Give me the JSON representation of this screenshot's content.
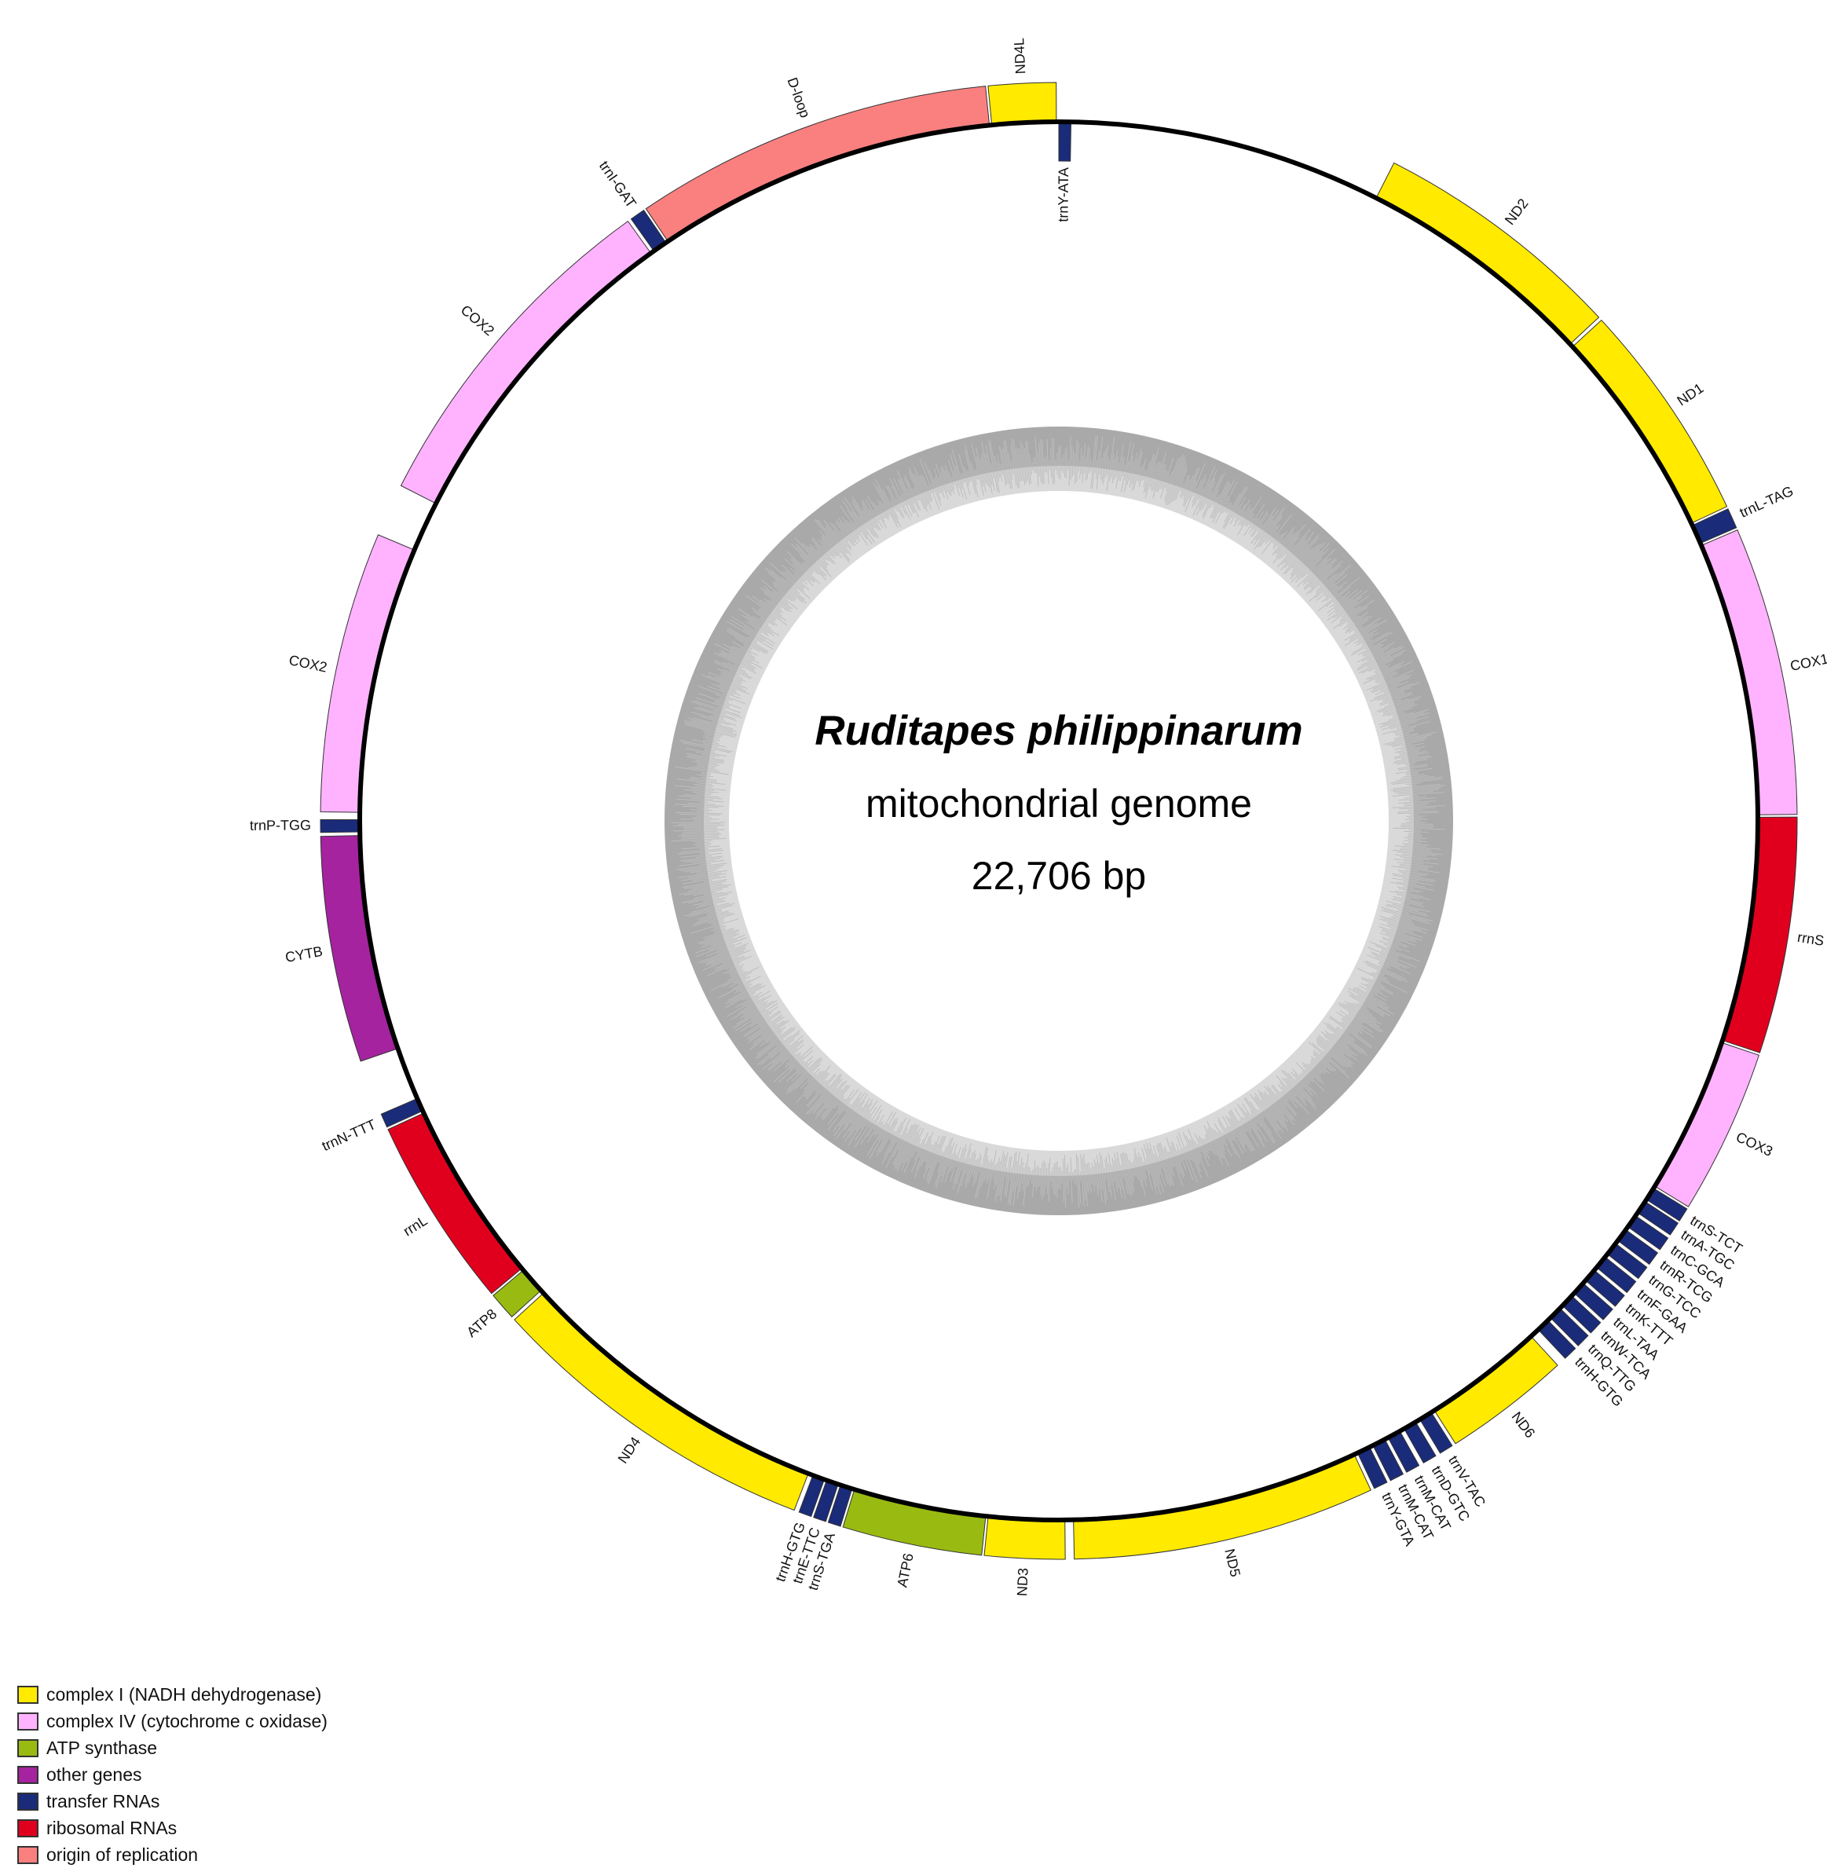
{
  "title": {
    "organism": "Ruditapes philippinarum",
    "subtitle": "mitochondrial genome",
    "length_label": "22,706 bp"
  },
  "colors": {
    "complex_I": "#ffea00",
    "complex_IV": "#ffb3ff",
    "atp": "#99bb11",
    "other": "#a5239f",
    "trna": "#1a2b7a",
    "rrna": "#e0001e",
    "origin": "#fa8080",
    "gc_outer": "#a9a9a9",
    "gc_inner": "#d9d9d9"
  },
  "genome": {
    "total_bp": 22706,
    "features": [
      {
        "name": "ND4L",
        "type": "complex_I",
        "start_deg": -5.5,
        "end_deg": -0.2,
        "strand": "outer",
        "label": "ND4L"
      },
      {
        "name": "trnY-ATA",
        "type": "trna",
        "start_deg": 0.0,
        "end_deg": 1.0,
        "strand": "inner",
        "label": "trnY-ATA"
      },
      {
        "name": "ND2",
        "type": "complex_I",
        "start_deg": 27.0,
        "end_deg": 47.0,
        "strand": "outer",
        "label": "ND2"
      },
      {
        "name": "ND1",
        "type": "complex_I",
        "start_deg": 47.3,
        "end_deg": 64.8,
        "strand": "outer",
        "label": "ND1"
      },
      {
        "name": "trnL-TAG",
        "type": "trna",
        "start_deg": 65.0,
        "end_deg": 66.6,
        "strand": "outer",
        "label": "trnL-TAG"
      },
      {
        "name": "COX1",
        "type": "complex_IV",
        "start_deg": 66.8,
        "end_deg": 89.5,
        "strand": "outer",
        "label": "COX1"
      },
      {
        "name": "rrnS",
        "type": "rrna",
        "start_deg": 89.7,
        "end_deg": 108.3,
        "strand": "outer",
        "label": "rrnS"
      },
      {
        "name": "COX3",
        "type": "complex_IV",
        "start_deg": 108.5,
        "end_deg": 121.5,
        "strand": "outer",
        "label": "COX3"
      },
      {
        "name": "trnS-TCT",
        "type": "trna",
        "start_deg": 121.7,
        "end_deg": 122.8,
        "strand": "outer",
        "label": "trnS-TCT"
      },
      {
        "name": "trnA-TGC",
        "type": "trna",
        "start_deg": 123.0,
        "end_deg": 124.1,
        "strand": "outer",
        "label": "trnA-TGC"
      },
      {
        "name": "trnC-GCA",
        "type": "trna",
        "start_deg": 124.4,
        "end_deg": 125.5,
        "strand": "outer",
        "label": "trnC-GCA"
      },
      {
        "name": "trnR-TCG",
        "type": "trna",
        "start_deg": 125.8,
        "end_deg": 126.9,
        "strand": "outer",
        "label": "trnR-TCG"
      },
      {
        "name": "trnG-TCC",
        "type": "trna",
        "start_deg": 127.2,
        "end_deg": 128.3,
        "strand": "outer",
        "label": "trnG-TCC"
      },
      {
        "name": "trnF-GAA",
        "type": "trna",
        "start_deg": 128.6,
        "end_deg": 129.7,
        "strand": "outer",
        "label": "trnF-GAA"
      },
      {
        "name": "trnK-TTT",
        "type": "trna",
        "start_deg": 130.0,
        "end_deg": 131.1,
        "strand": "outer",
        "label": "trnK-TTT"
      },
      {
        "name": "trnL-TAA",
        "type": "trna",
        "start_deg": 131.4,
        "end_deg": 132.5,
        "strand": "outer",
        "label": "trnL-TAA"
      },
      {
        "name": "trnW-TCA",
        "type": "trna",
        "start_deg": 132.8,
        "end_deg": 133.9,
        "strand": "outer",
        "label": "trnW-TCA"
      },
      {
        "name": "trnQ-TTG",
        "type": "trna",
        "start_deg": 134.2,
        "end_deg": 135.3,
        "strand": "outer",
        "label": "trnQ-TTG"
      },
      {
        "name": "trnH-GTG",
        "type": "trna",
        "start_deg": 135.6,
        "end_deg": 136.7,
        "strand": "outer",
        "label": "trnH-GTG"
      },
      {
        "name": "ND6",
        "type": "complex_I",
        "start_deg": 137.5,
        "end_deg": 147.5,
        "strand": "outer",
        "label": "ND6"
      },
      {
        "name": "trnV-TAC",
        "type": "trna",
        "start_deg": 147.8,
        "end_deg": 148.9,
        "strand": "outer",
        "label": "trnV-TAC"
      },
      {
        "name": "trnD-GTC",
        "type": "trna",
        "start_deg": 149.3,
        "end_deg": 150.4,
        "strand": "outer",
        "label": "trnD-GTC"
      },
      {
        "name": "trnM-CAT",
        "type": "trna",
        "start_deg": 150.8,
        "end_deg": 151.9,
        "strand": "outer",
        "label": "trnM-CAT"
      },
      {
        "name": "trnM-CAT",
        "type": "trna",
        "start_deg": 152.2,
        "end_deg": 153.3,
        "strand": "outer",
        "label": "trnM-CAT"
      },
      {
        "name": "trnY-GTA",
        "type": "trna",
        "start_deg": 153.6,
        "end_deg": 154.7,
        "strand": "outer",
        "label": "trnY-GTA"
      },
      {
        "name": "ND5",
        "type": "complex_I",
        "start_deg": 155.0,
        "end_deg": 178.8,
        "strand": "outer",
        "label": "ND5"
      },
      {
        "name": "ND3",
        "type": "complex_I",
        "start_deg": 179.5,
        "end_deg": 185.8,
        "strand": "outer",
        "label": "ND3"
      },
      {
        "name": "ATP6",
        "type": "atp",
        "start_deg": 186.0,
        "end_deg": 197.0,
        "strand": "outer",
        "label": "ATP6"
      },
      {
        "name": "trnS-TGA",
        "type": "trna",
        "start_deg": 197.2,
        "end_deg": 198.2,
        "strand": "outer",
        "label": "trnS-TGA"
      },
      {
        "name": "trnE-TTC",
        "type": "trna",
        "start_deg": 198.4,
        "end_deg": 199.4,
        "strand": "outer",
        "label": "trnE-TTC"
      },
      {
        "name": "trnH-GTG",
        "type": "trna",
        "start_deg": 199.6,
        "end_deg": 200.6,
        "strand": "outer",
        "label": "trnH-GTG"
      },
      {
        "name": "ND4",
        "type": "complex_I",
        "start_deg": 201.0,
        "end_deg": 227.5,
        "strand": "outer",
        "label": "ND4"
      },
      {
        "name": "ATP8",
        "type": "atp",
        "start_deg": 227.8,
        "end_deg": 230.0,
        "strand": "outer",
        "label": "ATP8"
      },
      {
        "name": "rrnL",
        "type": "rrna",
        "start_deg": 230.2,
        "end_deg": 245.3,
        "strand": "outer",
        "label": "rrnL"
      },
      {
        "name": "trnN-TTT",
        "type": "trna",
        "start_deg": 245.5,
        "end_deg": 246.6,
        "strand": "outer",
        "label": "trnN-TTT"
      },
      {
        "name": "CYTB",
        "type": "other",
        "start_deg": 251.0,
        "end_deg": 268.8,
        "strand": "outer",
        "label": "CYTB"
      },
      {
        "name": "trnP-TGG",
        "type": "trna",
        "start_deg": 269.1,
        "end_deg": 270.1,
        "strand": "outer",
        "label": "trnP-TGG"
      },
      {
        "name": "COX2",
        "type": "complex_IV",
        "start_deg": 270.7,
        "end_deg": 292.8,
        "strand": "outer",
        "label": "COX2"
      },
      {
        "name": "COX2",
        "type": "complex_IV",
        "start_deg": 297.0,
        "end_deg": 324.3,
        "strand": "outer",
        "label": "COX2"
      },
      {
        "name": "trnI-GAT",
        "type": "trna",
        "start_deg": 324.6,
        "end_deg": 325.8,
        "strand": "outer",
        "label": "trnI-GAT"
      },
      {
        "name": "D-loop",
        "type": "origin",
        "start_deg": 326.0,
        "end_deg": 354.3,
        "strand": "outer",
        "label": "D-loop"
      }
    ]
  },
  "legend": [
    {
      "key": "complex_I",
      "label": "complex I (NADH dehydrogenase)"
    },
    {
      "key": "complex_IV",
      "label": "complex IV (cytochrome c oxidase)"
    },
    {
      "key": "atp",
      "label": "ATP synthase"
    },
    {
      "key": "other",
      "label": "other genes"
    },
    {
      "key": "trna",
      "label": "transfer RNAs"
    },
    {
      "key": "rrna",
      "label": "ribosomal RNAs"
    },
    {
      "key": "origin",
      "label": "origin of replication"
    }
  ]
}
